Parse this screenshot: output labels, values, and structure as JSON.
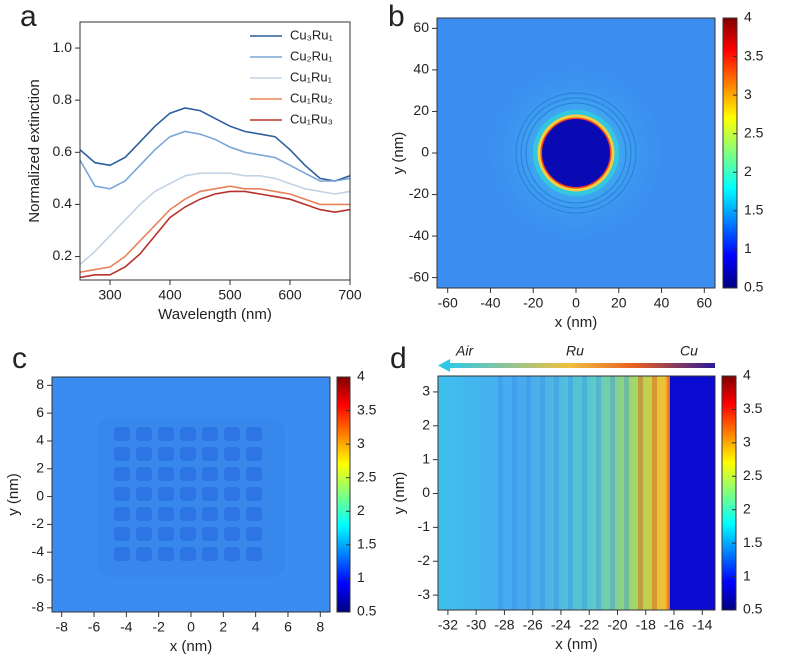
{
  "chart_data": [
    {
      "type": "line",
      "panel_label": "a",
      "xlabel": "Wavelength (nm)",
      "ylabel": "Normalized extinction",
      "xlim": [
        250,
        700
      ],
      "ylim": [
        0.11,
        1.1
      ],
      "xticks": [
        300,
        400,
        500,
        600,
        700
      ],
      "yticks": [
        0.2,
        0.4,
        0.6,
        0.8,
        {
          "value": 1.0,
          "label": "1.0"
        }
      ],
      "x": [
        250,
        275,
        300,
        325,
        350,
        375,
        400,
        425,
        450,
        475,
        500,
        525,
        550,
        575,
        600,
        625,
        650,
        675,
        700
      ],
      "series": [
        {
          "name": "Cu₃Ru₁",
          "color": "#2c5f9e",
          "values": [
            0.61,
            0.56,
            0.55,
            0.58,
            0.64,
            0.7,
            0.75,
            0.77,
            0.76,
            0.73,
            0.7,
            0.68,
            0.67,
            0.66,
            0.61,
            0.55,
            0.5,
            0.49,
            0.51
          ]
        },
        {
          "name": "Cu₂Ru₁",
          "color": "#7aa6d6",
          "values": [
            0.57,
            0.47,
            0.46,
            0.49,
            0.55,
            0.61,
            0.66,
            0.68,
            0.67,
            0.65,
            0.62,
            0.6,
            0.59,
            0.58,
            0.55,
            0.52,
            0.49,
            0.49,
            0.5
          ]
        },
        {
          "name": "Cu₁Ru₁",
          "color": "#c2d3e6",
          "values": [
            0.17,
            0.22,
            0.28,
            0.34,
            0.4,
            0.45,
            0.48,
            0.51,
            0.52,
            0.52,
            0.52,
            0.51,
            0.51,
            0.5,
            0.48,
            0.46,
            0.45,
            0.44,
            0.45
          ]
        },
        {
          "name": "Cu₁Ru₂",
          "color": "#e8825a",
          "values": [
            0.14,
            0.15,
            0.16,
            0.2,
            0.26,
            0.32,
            0.38,
            0.42,
            0.45,
            0.46,
            0.47,
            0.46,
            0.46,
            0.45,
            0.44,
            0.42,
            0.4,
            0.4,
            0.4
          ]
        },
        {
          "name": "Cu₁Ru₃",
          "color": "#b8322a",
          "values": [
            0.12,
            0.13,
            0.13,
            0.16,
            0.21,
            0.28,
            0.35,
            0.39,
            0.42,
            0.44,
            0.45,
            0.45,
            0.44,
            0.43,
            0.42,
            0.4,
            0.38,
            0.37,
            0.38
          ]
        }
      ]
    },
    {
      "type": "heatmap",
      "panel_label": "b",
      "xlabel": "x (nm)",
      "ylabel": "y (nm)",
      "xlim": [
        -65,
        65
      ],
      "ylim": [
        -65,
        65
      ],
      "xticks": [
        -60,
        -40,
        -20,
        0,
        20,
        40,
        60
      ],
      "yticks": [
        -60,
        -40,
        -20,
        0,
        20,
        40,
        60
      ],
      "clim": [
        0.5,
        4
      ],
      "cticks": [
        0.5,
        1,
        1.5,
        2,
        2.5,
        3,
        3.5,
        4
      ]
    },
    {
      "type": "heatmap",
      "panel_label": "c",
      "xlabel": "x (nm)",
      "ylabel": "y (nm)",
      "xlim": [
        -8.6,
        8.6
      ],
      "ylim": [
        -8.3,
        8.6
      ],
      "xticks": [
        -8,
        -6,
        -4,
        -2,
        0,
        2,
        4,
        6,
        8
      ],
      "yticks": [
        -8,
        -6,
        -4,
        -2,
        0,
        2,
        4,
        6,
        8
      ],
      "clim": [
        0.5,
        4
      ],
      "cticks": [
        0.5,
        1,
        1.5,
        2,
        2.5,
        3,
        3.5,
        4
      ]
    },
    {
      "type": "heatmap",
      "panel_label": "d",
      "xlabel": "x (nm)",
      "ylabel": "y (nm)",
      "xlim": [
        -32.7,
        -13.1
      ],
      "ylim": [
        -3.44,
        3.47
      ],
      "xticks": [
        -32,
        -30,
        -28,
        -26,
        -24,
        -22,
        -20,
        -18,
        -16,
        -14
      ],
      "yticks": [
        -3,
        -2,
        -1,
        0,
        1,
        2,
        3
      ],
      "clim": [
        0.5,
        4
      ],
      "cticks": [
        0.5,
        1,
        1.5,
        2,
        2.5,
        3,
        3.5,
        4
      ],
      "annotations": [
        "Air",
        "Ru",
        "Cu"
      ]
    }
  ]
}
